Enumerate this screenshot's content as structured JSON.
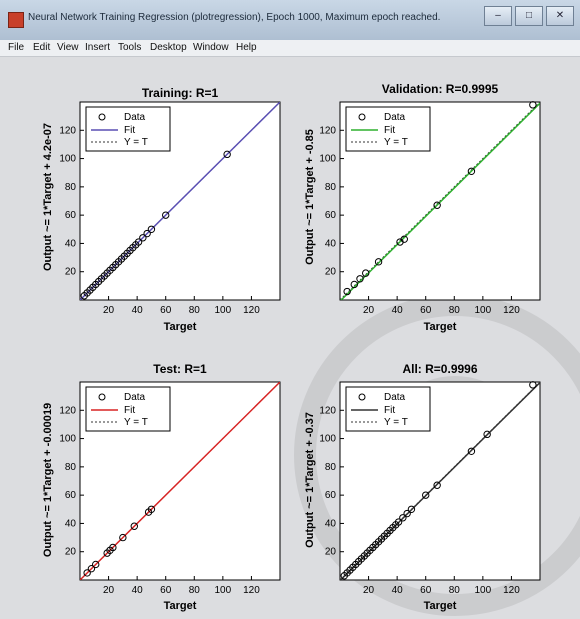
{
  "window": {
    "title": "Neural Network Training Regression (plotregression), Epoch 1000, Maximum epoch reached.",
    "buttons": [
      "–",
      "□",
      "✕"
    ]
  },
  "menu": [
    "File",
    "Edit",
    "View",
    "Insert",
    "Tools",
    "Desktop",
    "Window",
    "Help"
  ],
  "colors": {
    "training_fit": "#5a4fb3",
    "validation_fit": "#2fb12f",
    "test_fit": "#d82424",
    "all_fit": "#333333"
  },
  "legend": {
    "data": "Data",
    "fit": "Fit",
    "yt": "Y = T"
  },
  "chart_data": [
    {
      "type": "scatter",
      "id": "training",
      "title": "Training: R=1",
      "xlabel": "Target",
      "ylabel": "Output ~= 1*Target + 4.2e-07",
      "xlim": [
        0,
        140
      ],
      "ylim": [
        0,
        140
      ],
      "xticks": [
        20,
        40,
        60,
        80,
        100,
        120
      ],
      "yticks": [
        20,
        40,
        60,
        80,
        100,
        120
      ],
      "fit": [
        1,
        0
      ],
      "points": [
        [
          3,
          3
        ],
        [
          5,
          5
        ],
        [
          7,
          7
        ],
        [
          9,
          9
        ],
        [
          11,
          11
        ],
        [
          13,
          13
        ],
        [
          15,
          15
        ],
        [
          17,
          17
        ],
        [
          19,
          19
        ],
        [
          21,
          21
        ],
        [
          23,
          23
        ],
        [
          25,
          25
        ],
        [
          27,
          27
        ],
        [
          29,
          29
        ],
        [
          31,
          31
        ],
        [
          33,
          33
        ],
        [
          35,
          35
        ],
        [
          37,
          37
        ],
        [
          39,
          39
        ],
        [
          41,
          41
        ],
        [
          44,
          44
        ],
        [
          47,
          47
        ],
        [
          50,
          50
        ],
        [
          60,
          60
        ],
        [
          103,
          103
        ]
      ]
    },
    {
      "type": "scatter",
      "id": "validation",
      "title": "Validation: R=0.9995",
      "xlabel": "Target",
      "ylabel": "Output ~= 1*Target + -0.85",
      "xlim": [
        0,
        140
      ],
      "ylim": [
        0,
        140
      ],
      "xticks": [
        20,
        40,
        60,
        80,
        100,
        120
      ],
      "yticks": [
        20,
        40,
        60,
        80,
        100,
        120
      ],
      "fit": [
        1,
        -0.85
      ],
      "points": [
        [
          5,
          6
        ],
        [
          10,
          11
        ],
        [
          14,
          15
        ],
        [
          18,
          19
        ],
        [
          27,
          27
        ],
        [
          42,
          41
        ],
        [
          45,
          43
        ],
        [
          68,
          67
        ],
        [
          92,
          91
        ],
        [
          135,
          138
        ]
      ]
    },
    {
      "type": "scatter",
      "id": "test",
      "title": "Test: R=1",
      "xlabel": "Target",
      "ylabel": "Output ~= 1*Target + -0.00019",
      "xlim": [
        0,
        140
      ],
      "ylim": [
        0,
        140
      ],
      "xticks": [
        20,
        40,
        60,
        80,
        100,
        120
      ],
      "yticks": [
        20,
        40,
        60,
        80,
        100,
        120
      ],
      "fit": [
        1,
        -0.00019
      ],
      "points": [
        [
          5,
          5
        ],
        [
          8,
          8
        ],
        [
          11,
          11
        ],
        [
          19,
          19
        ],
        [
          21,
          21
        ],
        [
          23,
          23
        ],
        [
          30,
          30
        ],
        [
          38,
          38
        ],
        [
          48,
          48
        ],
        [
          50,
          50
        ]
      ]
    },
    {
      "type": "scatter",
      "id": "all",
      "title": "All: R=0.9996",
      "xlabel": "Target",
      "ylabel": "Output ~= 1*Target + -0.37",
      "xlim": [
        0,
        140
      ],
      "ylim": [
        0,
        140
      ],
      "xticks": [
        20,
        40,
        60,
        80,
        100,
        120
      ],
      "yticks": [
        20,
        40,
        60,
        80,
        100,
        120
      ],
      "fit": [
        1,
        -0.37
      ],
      "points": [
        [
          3,
          3
        ],
        [
          5,
          5
        ],
        [
          7,
          7
        ],
        [
          9,
          9
        ],
        [
          11,
          11
        ],
        [
          13,
          13
        ],
        [
          15,
          15
        ],
        [
          17,
          17
        ],
        [
          19,
          19
        ],
        [
          21,
          21
        ],
        [
          23,
          23
        ],
        [
          25,
          25
        ],
        [
          27,
          27
        ],
        [
          29,
          29
        ],
        [
          31,
          31
        ],
        [
          33,
          33
        ],
        [
          35,
          35
        ],
        [
          37,
          37
        ],
        [
          39,
          39
        ],
        [
          41,
          41
        ],
        [
          44,
          44
        ],
        [
          47,
          47
        ],
        [
          50,
          50
        ],
        [
          60,
          60
        ],
        [
          68,
          67
        ],
        [
          92,
          91
        ],
        [
          103,
          103
        ],
        [
          135,
          138
        ]
      ]
    }
  ]
}
